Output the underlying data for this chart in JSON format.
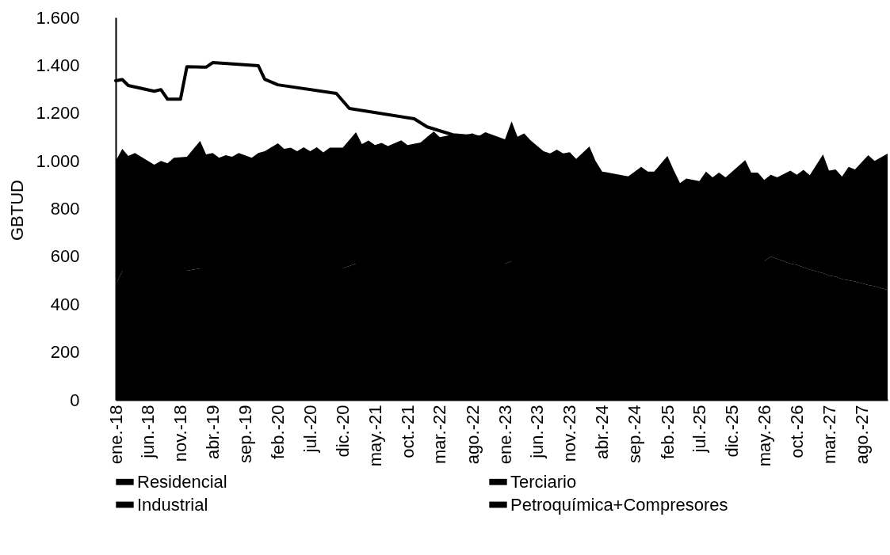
{
  "chart_data": {
    "type": "area",
    "ylabel": "GBTUD",
    "stacked": true,
    "legend": "bottom",
    "x": [
      "2018-01",
      "2018-02",
      "2018-03",
      "2018-04",
      "2018-07",
      "2018-08",
      "2018-09",
      "2018-10",
      "2018-12",
      "2019-02",
      "2019-03",
      "2019-04",
      "2019-05",
      "2019-06",
      "2019-07",
      "2019-08",
      "2019-10",
      "2019-11",
      "2019-12",
      "2020-02",
      "2020-03",
      "2020-04",
      "2020-05",
      "2020-06",
      "2020-07",
      "2020-08",
      "2020-09",
      "2020-10",
      "2020-12",
      "2021-02",
      "2021-03",
      "2021-04",
      "2021-05",
      "2021-06",
      "2021-07",
      "2021-09",
      "2021-10",
      "2021-12",
      "2022-02",
      "2022-03",
      "2022-05",
      "2022-06",
      "2022-08",
      "2022-09",
      "2022-10",
      "2023-01",
      "2023-02",
      "2023-03",
      "2023-04",
      "2023-05",
      "2023-07",
      "2023-08",
      "2023-09",
      "2023-10",
      "2023-11",
      "2023-12",
      "2024-02",
      "2024-03",
      "2024-04",
      "2024-08",
      "2024-09",
      "2024-10",
      "2024-11",
      "2024-12",
      "2025-02",
      "2025-03",
      "2025-04",
      "2025-05",
      "2025-07",
      "2025-08",
      "2025-09",
      "2025-10",
      "2025-11",
      "2026-02",
      "2026-03",
      "2026-04",
      "2026-05",
      "2026-06",
      "2026-07",
      "2026-09",
      "2026-10",
      "2026-11",
      "2026-12",
      "2027-02",
      "2027-03",
      "2027-04",
      "2027-05",
      "2027-06",
      "2027-07",
      "2027-09",
      "2027-10",
      "2027-12"
    ],
    "series": [
      {
        "name": "Residencial",
        "color": "#000000",
        "values": [
          null,
          null,
          null,
          null,
          null,
          null,
          null,
          null,
          null,
          null,
          null,
          null,
          null,
          null,
          null,
          null,
          null,
          null,
          null,
          null,
          null,
          null,
          null,
          null,
          null,
          null,
          null,
          null,
          null,
          null,
          null,
          null,
          null,
          null,
          null,
          null,
          null,
          null,
          null,
          null,
          null,
          null,
          null,
          null,
          null,
          null,
          null,
          null,
          null,
          null,
          null,
          null,
          null,
          null,
          null,
          null,
          null,
          null,
          null,
          null,
          null,
          null,
          null,
          null,
          null,
          null,
          null,
          null,
          null,
          null,
          null,
          null,
          null,
          null,
          null,
          null,
          null,
          null,
          null,
          null,
          null,
          null,
          null,
          null,
          null,
          null,
          null,
          null,
          null,
          null,
          null,
          null
        ]
      },
      {
        "name": "Terciario",
        "color": "#000000",
        "values": [
          null,
          null,
          null,
          null,
          null,
          null,
          null,
          null,
          null,
          null,
          null,
          null,
          null,
          null,
          null,
          null,
          null,
          null,
          null,
          null,
          null,
          null,
          null,
          null,
          null,
          null,
          null,
          null,
          null,
          null,
          null,
          null,
          null,
          null,
          null,
          null,
          null,
          null,
          null,
          null,
          null,
          null,
          null,
          null,
          null,
          null,
          null,
          null,
          null,
          null,
          null,
          null,
          null,
          null,
          null,
          null,
          null,
          null,
          null,
          null,
          null,
          null,
          null,
          null,
          null,
          null,
          null,
          null,
          null,
          null,
          null,
          null,
          null,
          null,
          null,
          null,
          null,
          null,
          null,
          null,
          null,
          null,
          null,
          null,
          null,
          null,
          null,
          null,
          null,
          null,
          null,
          null
        ]
      },
      {
        "name": "Industrial",
        "color": "#000000",
        "values": [
          480,
          540,
          540,
          540,
          540,
          540,
          540,
          540,
          540,
          550,
          550,
          550,
          550,
          550,
          550,
          550,
          550,
          550,
          550,
          550,
          550,
          550,
          550,
          550,
          550,
          550,
          550,
          550,
          550,
          570,
          570,
          570,
          570,
          570,
          570,
          570,
          570,
          570,
          570,
          570,
          570,
          570,
          570,
          570,
          570,
          570,
          580,
          580,
          580,
          580,
          580,
          580,
          580,
          580,
          580,
          580,
          580,
          580,
          580,
          580,
          580,
          580,
          580,
          580,
          580,
          580,
          580,
          580,
          580,
          580,
          580,
          580,
          580,
          580,
          580,
          580,
          580,
          600,
          590,
          570,
          565,
          555,
          545,
          530,
          520,
          515,
          505,
          500,
          495,
          480,
          475,
          460
        ]
      },
      {
        "name": "Petroquímica+Compresores",
        "color": "#000000",
        "values": [
          520,
          510,
          480,
          493,
          444,
          460,
          450,
          473,
          477,
          533,
          477,
          483,
          463,
          474,
          467,
          483,
          463,
          483,
          490,
          523,
          500,
          505,
          490,
          507,
          490,
          507,
          485,
          505,
          505,
          550,
          500,
          515,
          496,
          505,
          492,
          516,
          496,
          507,
          553,
          529,
          540,
          534,
          545,
          534,
          550,
          520,
          585,
          521,
          535,
          506,
          460,
          451,
          467,
          451,
          456,
          428,
          480,
          420,
          375,
          355,
          375,
          395,
          375,
          375,
          440,
          384,
          327,
          346,
          335,
          375,
          351,
          371,
          351,
          423,
          371,
          371,
          340,
          342,
          341,
          389,
          377,
          407,
          395,
          497,
          439,
          449,
          429,
          475,
          469,
          544,
          525,
          570
        ]
      },
      {
        "type": "line",
        "color": "#000000",
        "x": [
          "2018-01",
          "2018-02",
          "2018-03",
          "2018-07",
          "2018-08",
          "2018-09",
          "2018-11",
          "2018-12",
          "2019-03",
          "2019-04",
          "2019-11",
          "2019-12",
          "2020-02",
          "2020-11",
          "2021-01",
          "2021-11",
          "2022-01",
          "2022-05",
          "2022-09"
        ],
        "values": [
          1335,
          1340,
          1315,
          1291,
          1298,
          1258,
          1258,
          1394,
          1392,
          1411,
          1398,
          1341,
          1318,
          1282,
          1219,
          1176,
          1142,
          1109,
          1100
        ]
      }
    ],
    "xlim": [
      "2018-01",
      "2027-12"
    ],
    "xticks": [
      {
        "value": "2018-01",
        "label": "ene.-18"
      },
      {
        "value": "2018-06",
        "label": "jun.-18"
      },
      {
        "value": "2018-11",
        "label": "nov.-18"
      },
      {
        "value": "2019-04",
        "label": "abr.-19"
      },
      {
        "value": "2019-09",
        "label": "sep.-19"
      },
      {
        "value": "2020-02",
        "label": "feb.-20"
      },
      {
        "value": "2020-07",
        "label": "jul.-20"
      },
      {
        "value": "2020-12",
        "label": "dic.-20"
      },
      {
        "value": "2021-05",
        "label": "may.-21"
      },
      {
        "value": "2021-10",
        "label": "oct.-21"
      },
      {
        "value": "2022-03",
        "label": "mar.-22"
      },
      {
        "value": "2022-08",
        "label": "ago.-22"
      },
      {
        "value": "2023-01",
        "label": "ene.-23"
      },
      {
        "value": "2023-06",
        "label": "jun.-23"
      },
      {
        "value": "2023-11",
        "label": "nov.-23"
      },
      {
        "value": "2024-04",
        "label": "abr.-24"
      },
      {
        "value": "2024-09",
        "label": "sep.-24"
      },
      {
        "value": "2025-02",
        "label": "feb.-25"
      },
      {
        "value": "2025-07",
        "label": "jul.-25"
      },
      {
        "value": "2025-12",
        "label": "dic.-25"
      },
      {
        "value": "2026-05",
        "label": "may.-26"
      },
      {
        "value": "2026-10",
        "label": "oct.-26"
      },
      {
        "value": "2027-03",
        "label": "mar.-27"
      },
      {
        "value": "2027-08",
        "label": "ago.-27"
      }
    ],
    "ylim": [
      0,
      1600
    ],
    "yticks": [
      0,
      200,
      400,
      600,
      800,
      {
        "value": 1000,
        "label": "1.000"
      },
      {
        "value": 1200,
        "label": "1.200"
      },
      {
        "value": 1400,
        "label": "1.400"
      },
      {
        "value": 1600,
        "label": "1.600"
      }
    ]
  }
}
